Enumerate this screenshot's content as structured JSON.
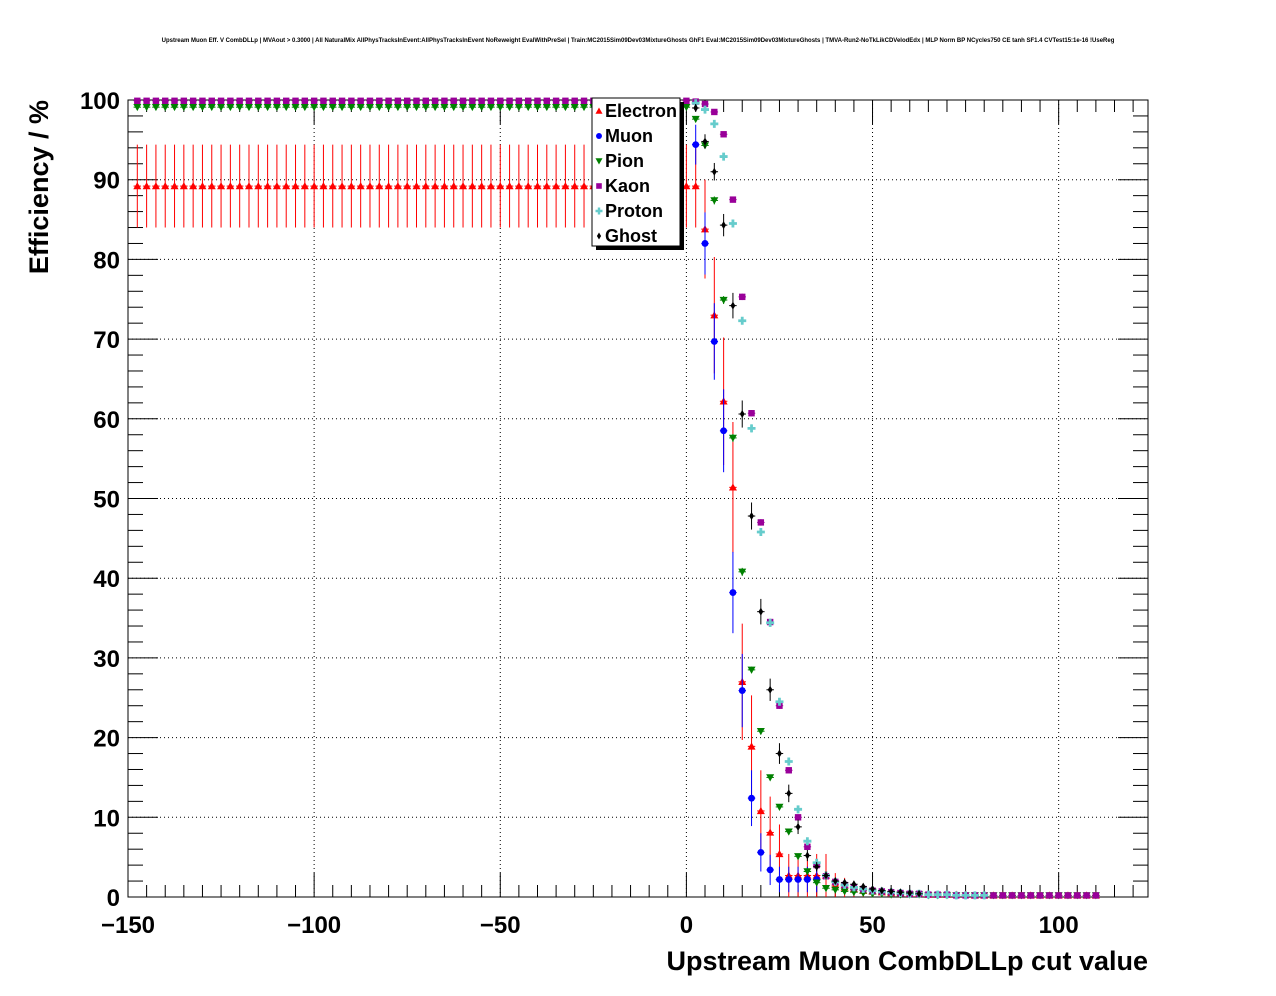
{
  "chart_data": {
    "type": "scatter",
    "title": "Upstream Muon Eff. V CombDLLp | MVAout > 0.3000 | All NaturalMix AllPhysTracksInEvent:AllPhysTracksInEvent NoReweight EvalWithPreSel | Train:MC2015Sim09Dev03MixtureGhosts GhF1 Eval:MC2015Sim09Dev03MixtureGhosts | TMVA-Run2-NoTkLikCDVelodEdx | MLP Norm BP NCycles750 CE tanh SF1.4 CVTest15:1e-16 !UseReg",
    "xlabel": "Upstream Muon CombDLLp cut value",
    "ylabel": "Efficiency / %",
    "xlim": [
      -150,
      124
    ],
    "ylim": [
      0,
      100
    ],
    "xticks": [
      -150,
      -100,
      -50,
      0,
      50,
      100
    ],
    "xtick_labels": [
      "−150",
      "−100",
      "−50",
      "0",
      "50",
      "100"
    ],
    "yticks": [
      0,
      10,
      20,
      30,
      40,
      50,
      60,
      70,
      80,
      90,
      100
    ],
    "ytick_labels": [
      "0",
      "10",
      "20",
      "30",
      "40",
      "50",
      "60",
      "70",
      "80",
      "90",
      "100"
    ],
    "grid": true,
    "legend_position": "top-center",
    "series": [
      {
        "name": "Electron",
        "color": "#ff0000",
        "marker": "triangle-up",
        "x": [
          -147.5,
          -145,
          -142.5,
          -140,
          -137.5,
          -135,
          -132.5,
          -130,
          -127.5,
          -125,
          -122.5,
          -120,
          -117.5,
          -115,
          -112.5,
          -110,
          -107.5,
          -105,
          -102.5,
          -100,
          -97.5,
          -95,
          -92.5,
          -90,
          -87.5,
          -85,
          -82.5,
          -80,
          -77.5,
          -75,
          -72.5,
          -70,
          -67.5,
          -65,
          -62.5,
          -60,
          -57.5,
          -55,
          -52.5,
          -50,
          -47.5,
          -45,
          -42.5,
          -40,
          -37.5,
          -35,
          -32.5,
          -30,
          -27.5,
          -25,
          -22.5,
          -20,
          -17.5,
          -15,
          -12.5,
          -10,
          -7.5,
          -5,
          -2.5,
          0,
          2.5,
          5,
          7.5,
          10,
          12.5,
          15,
          17.5,
          20,
          22.5,
          25,
          27.5,
          30,
          32.5,
          35,
          37.5,
          40,
          42.5,
          45,
          47.5,
          50,
          52.5,
          55,
          57.5,
          60,
          62.5,
          65,
          67.5,
          70,
          72.5,
          75,
          77.5,
          80,
          82.5,
          85,
          87.5,
          90,
          92.5,
          95,
          97.5,
          100,
          102.5,
          105,
          107.5,
          110
        ],
        "y": [
          89.2,
          89.2,
          89.2,
          89.2,
          89.2,
          89.2,
          89.2,
          89.2,
          89.2,
          89.2,
          89.2,
          89.2,
          89.2,
          89.2,
          89.2,
          89.2,
          89.2,
          89.2,
          89.2,
          89.2,
          89.2,
          89.2,
          89.2,
          89.2,
          89.2,
          89.2,
          89.2,
          89.2,
          89.2,
          89.2,
          89.2,
          89.2,
          89.2,
          89.2,
          89.2,
          89.2,
          89.2,
          89.2,
          89.2,
          89.2,
          89.2,
          89.2,
          89.2,
          89.2,
          89.2,
          89.2,
          89.2,
          89.2,
          89.2,
          89.2,
          89.2,
          89.2,
          89.2,
          89.2,
          89.2,
          89.2,
          89.2,
          89.2,
          89.2,
          89.2,
          89.2,
          83.8,
          73.0,
          62.2,
          51.4,
          27.0,
          18.9,
          10.8,
          8.1,
          5.4,
          2.7,
          2.7,
          2.7,
          2.7,
          2.7,
          1.5,
          1.2,
          1.0,
          0.8,
          0.7,
          0.6,
          0.5,
          0.5,
          0.4,
          0.4,
          0.3,
          0.3,
          0.3,
          0.3,
          0.3,
          0.2,
          0.2,
          0.2,
          0.2,
          0.2,
          0.2,
          0.2,
          0.2,
          0.2,
          0.2,
          0.2,
          0.2,
          0.2,
          0.2
        ],
        "err": [
          5.2,
          5.2,
          5.2,
          5.2,
          5.2,
          5.2,
          5.2,
          5.2,
          5.2,
          5.2,
          5.2,
          5.2,
          5.2,
          5.2,
          5.2,
          5.2,
          5.2,
          5.2,
          5.2,
          5.2,
          5.2,
          5.2,
          5.2,
          5.2,
          5.2,
          5.2,
          5.2,
          5.2,
          5.2,
          5.2,
          5.2,
          5.2,
          5.2,
          5.2,
          5.2,
          5.2,
          5.2,
          5.2,
          5.2,
          5.2,
          5.2,
          5.2,
          5.2,
          5.2,
          5.2,
          5.2,
          5.2,
          5.2,
          5.2,
          5.2,
          5.2,
          5.2,
          5.2,
          5.2,
          5.2,
          5.2,
          5.2,
          5.2,
          5.2,
          5.2,
          5.2,
          6.2,
          7.3,
          8.0,
          8.2,
          7.3,
          6.4,
          5.1,
          4.5,
          3.7,
          2.7,
          2.7,
          2.7,
          2.7,
          2.7,
          1.5,
          1.2,
          1.0,
          0.8,
          0.7,
          0.6,
          0.5,
          0.5,
          0.4,
          0.4,
          0.3,
          0.3,
          0.3,
          0.3,
          0.3,
          0.2,
          0.2,
          0.2,
          0.2,
          0.2,
          0.2,
          0.2,
          0.2,
          0.2,
          0.2,
          0.2,
          0.2,
          0.2,
          0.2
        ]
      },
      {
        "name": "Muon",
        "color": "#0000ff",
        "marker": "circle",
        "x": [
          2.5,
          5,
          7.5,
          10,
          12.5,
          15,
          17.5,
          20,
          22.5,
          25,
          27.5,
          30,
          32.5,
          35
        ],
        "y": [
          94.4,
          82.0,
          69.7,
          58.5,
          38.2,
          25.9,
          12.4,
          5.6,
          3.4,
          2.2,
          2.2,
          2.2,
          2.2,
          2.2
        ],
        "err": [
          2.5,
          3.9,
          4.8,
          5.2,
          5.1,
          4.6,
          3.5,
          2.4,
          1.9,
          1.6,
          1.6,
          1.6,
          1.6,
          1.6
        ]
      },
      {
        "name": "Pion",
        "color": "#008000",
        "marker": "triangle-down",
        "x": [
          -147.5,
          -145,
          -142.5,
          -140,
          -137.5,
          -135,
          -132.5,
          -130,
          -127.5,
          -125,
          -122.5,
          -120,
          -117.5,
          -115,
          -112.5,
          -110,
          -107.5,
          -105,
          -102.5,
          -100,
          -97.5,
          -95,
          -92.5,
          -90,
          -87.5,
          -85,
          -82.5,
          -80,
          -77.5,
          -75,
          -72.5,
          -70,
          -67.5,
          -65,
          -62.5,
          -60,
          -57.5,
          -55,
          -52.5,
          -50,
          -47.5,
          -45,
          -42.5,
          -40,
          -37.5,
          -35,
          -32.5,
          -30,
          -27.5,
          -25,
          -22.5,
          -20,
          -17.5,
          -15,
          -12.5,
          -10,
          -7.5,
          -5,
          -2.5,
          0,
          2.5,
          5,
          7.5,
          10,
          12.5,
          15,
          17.5,
          20,
          22.5,
          25,
          27.5,
          30,
          32.5,
          35,
          37.5,
          40,
          42.5,
          45,
          47.5,
          50,
          52.5,
          55,
          57.5,
          60,
          62.5,
          65,
          67.5,
          70,
          72.5,
          75,
          77.5,
          80,
          82.5,
          85,
          87.5,
          90,
          92.5,
          95,
          97.5,
          100,
          102.5,
          105,
          107.5,
          110
        ],
        "y": [
          99.1,
          99.1,
          99.1,
          99.1,
          99.1,
          99.1,
          99.1,
          99.1,
          99.1,
          99.1,
          99.1,
          99.1,
          99.1,
          99.1,
          99.1,
          99.1,
          99.1,
          99.1,
          99.1,
          99.1,
          99.1,
          99.1,
          99.1,
          99.1,
          99.1,
          99.1,
          99.1,
          99.1,
          99.1,
          99.1,
          99.1,
          99.1,
          99.1,
          99.1,
          99.1,
          99.1,
          99.1,
          99.1,
          99.1,
          99.1,
          99.1,
          99.1,
          99.1,
          99.1,
          99.1,
          99.1,
          99.1,
          99.1,
          99.1,
          99.1,
          99.1,
          99.1,
          99.1,
          99.1,
          99.1,
          99.1,
          99.1,
          99.1,
          99.1,
          99.1,
          97.6,
          94.3,
          87.4,
          74.9,
          57.6,
          40.8,
          28.5,
          20.8,
          15.0,
          11.3,
          8.2,
          5.1,
          3.2,
          1.8,
          1.1,
          0.9,
          0.7,
          0.6,
          0.5,
          0.4,
          0.4,
          0.3,
          0.3,
          0.3,
          0.3,
          0.2,
          0.2,
          0.2,
          0.2,
          0.2,
          0.2,
          0.2,
          0.2,
          0.2,
          0.2,
          0.2,
          0.2,
          0.2,
          0.2,
          0.2,
          0.2,
          0.2,
          0.2,
          0.2
        ],
        "err": [
          0.2,
          0.2,
          0.2,
          0.2,
          0.2,
          0.2,
          0.2,
          0.2,
          0.2,
          0.2,
          0.2,
          0.2,
          0.2,
          0.2,
          0.2,
          0.2,
          0.2,
          0.2,
          0.2,
          0.2,
          0.2,
          0.2,
          0.2,
          0.2,
          0.2,
          0.2,
          0.2,
          0.2,
          0.2,
          0.2,
          0.2,
          0.2,
          0.2,
          0.2,
          0.2,
          0.2,
          0.2,
          0.2,
          0.2,
          0.2,
          0.2,
          0.2,
          0.2,
          0.2,
          0.2,
          0.2,
          0.2,
          0.2,
          0.2,
          0.2,
          0.2,
          0.2,
          0.2,
          0.2,
          0.2,
          0.2,
          0.2,
          0.2,
          0.2,
          0.2,
          0.3,
          0.4,
          0.5,
          0.5,
          0.5,
          0.5,
          0.4,
          0.4,
          0.3,
          0.3,
          0.3,
          0.2,
          0.2,
          0.1,
          0.1,
          0.1,
          0.1,
          0.1,
          0.1,
          0.1,
          0.1,
          0.1,
          0.1,
          0.1,
          0.1,
          0.1,
          0.1,
          0.1,
          0.1,
          0.1,
          0.1,
          0.1,
          0.1,
          0.1,
          0.1,
          0.1,
          0.1,
          0.1,
          0.1,
          0.1,
          0.1,
          0.1,
          0.1,
          0.1
        ]
      },
      {
        "name": "Kaon",
        "color": "#990099",
        "marker": "square",
        "x": [
          -147.5,
          -145,
          -142.5,
          -140,
          -137.5,
          -135,
          -132.5,
          -130,
          -127.5,
          -125,
          -122.5,
          -120,
          -117.5,
          -115,
          -112.5,
          -110,
          -107.5,
          -105,
          -102.5,
          -100,
          -97.5,
          -95,
          -92.5,
          -90,
          -87.5,
          -85,
          -82.5,
          -80,
          -77.5,
          -75,
          -72.5,
          -70,
          -67.5,
          -65,
          -62.5,
          -60,
          -57.5,
          -55,
          -52.5,
          -50,
          -47.5,
          -45,
          -42.5,
          -40,
          -37.5,
          -35,
          -32.5,
          -30,
          -27.5,
          -25,
          -22.5,
          -20,
          -17.5,
          -15,
          -12.5,
          -10,
          -7.5,
          -5,
          -2.5,
          0,
          2.5,
          5,
          7.5,
          10,
          12.5,
          15,
          17.5,
          20,
          22.5,
          25,
          27.5,
          30,
          32.5,
          35,
          37.5,
          40,
          42.5,
          45,
          47.5,
          50,
          52.5,
          55,
          57.5,
          60,
          62.5,
          65,
          67.5,
          70,
          72.5,
          75,
          77.5,
          80,
          82.5,
          85,
          87.5,
          90,
          92.5,
          95,
          97.5,
          100,
          102.5,
          105,
          107.5,
          110
        ],
        "y": [
          99.9,
          99.9,
          99.9,
          99.9,
          99.9,
          99.9,
          99.9,
          99.9,
          99.9,
          99.9,
          99.9,
          99.9,
          99.9,
          99.9,
          99.9,
          99.9,
          99.9,
          99.9,
          99.9,
          99.9,
          99.9,
          99.9,
          99.9,
          99.9,
          99.9,
          99.9,
          99.9,
          99.9,
          99.9,
          99.9,
          99.9,
          99.9,
          99.9,
          99.9,
          99.9,
          99.9,
          99.9,
          99.9,
          99.9,
          99.9,
          99.9,
          99.9,
          99.9,
          99.9,
          99.9,
          99.9,
          99.9,
          99.9,
          99.9,
          99.9,
          99.9,
          99.9,
          99.9,
          99.9,
          99.9,
          99.9,
          99.9,
          99.9,
          99.9,
          99.9,
          99.8,
          99.5,
          98.5,
          95.7,
          87.5,
          75.3,
          60.7,
          47.0,
          34.5,
          24.0,
          15.9,
          10.0,
          6.3,
          4.0,
          2.6,
          1.9,
          1.5,
          1.2,
          1.0,
          0.8,
          0.7,
          0.6,
          0.5,
          0.4,
          0.4,
          0.3,
          0.3,
          0.3,
          0.2,
          0.2,
          0.2,
          0.2,
          0.2,
          0.2,
          0.2,
          0.2,
          0.2,
          0.2,
          0.2,
          0.2,
          0.2,
          0.2,
          0.2,
          0.2
        ],
        "err": [
          0.1,
          0.1,
          0.1,
          0.1,
          0.1,
          0.1,
          0.1,
          0.1,
          0.1,
          0.1,
          0.1,
          0.1,
          0.1,
          0.1,
          0.1,
          0.1,
          0.1,
          0.1,
          0.1,
          0.1,
          0.1,
          0.1,
          0.1,
          0.1,
          0.1,
          0.1,
          0.1,
          0.1,
          0.1,
          0.1,
          0.1,
          0.1,
          0.1,
          0.1,
          0.1,
          0.1,
          0.1,
          0.1,
          0.1,
          0.1,
          0.1,
          0.1,
          0.1,
          0.1,
          0.1,
          0.1,
          0.1,
          0.1,
          0.1,
          0.1,
          0.1,
          0.1,
          0.1,
          0.1,
          0.1,
          0.1,
          0.1,
          0.1,
          0.1,
          0.1,
          0.1,
          0.1,
          0.1,
          0.2,
          0.3,
          0.4,
          0.4,
          0.4,
          0.4,
          0.4,
          0.3,
          0.3,
          0.2,
          0.2,
          0.1,
          0.1,
          0.1,
          0.1,
          0.1,
          0.1,
          0.1,
          0.1,
          0.1,
          0.1,
          0.1,
          0.1,
          0.1,
          0.1,
          0.1,
          0.1,
          0.1,
          0.1,
          0.1,
          0.1,
          0.1,
          0.1,
          0.1,
          0.1,
          0.1,
          0.1,
          0.1,
          0.1,
          0.1,
          0.1
        ]
      },
      {
        "name": "Proton",
        "color": "#66cccc",
        "marker": "cross",
        "x": [
          2.5,
          5,
          7.5,
          10,
          12.5,
          15,
          17.5,
          20,
          22.5,
          25,
          27.5,
          30,
          32.5,
          35,
          37.5,
          40,
          42.5,
          45,
          47.5,
          50,
          52.5,
          55,
          57.5,
          60,
          62.5,
          65,
          67.5,
          70,
          72.5,
          75,
          77.5,
          80
        ],
        "y": [
          99.6,
          98.8,
          97.0,
          92.9,
          84.5,
          72.3,
          58.8,
          45.8,
          34.4,
          24.5,
          17.0,
          11.0,
          7.0,
          4.3,
          2.7,
          1.9,
          1.5,
          1.2,
          1.0,
          0.8,
          0.7,
          0.6,
          0.5,
          0.4,
          0.4,
          0.3,
          0.3,
          0.3,
          0.2,
          0.2,
          0.2,
          0.2
        ],
        "err": [
          0.1,
          0.2,
          0.2,
          0.3,
          0.4,
          0.4,
          0.5,
          0.5,
          0.5,
          0.4,
          0.4,
          0.3,
          0.3,
          0.2,
          0.2,
          0.1,
          0.1,
          0.1,
          0.1,
          0.1,
          0.1,
          0.1,
          0.1,
          0.1,
          0.1,
          0.1,
          0.1,
          0.1,
          0.1,
          0.1,
          0.1,
          0.1
        ]
      },
      {
        "name": "Ghost",
        "color": "#000000",
        "marker": "diamond",
        "x": [
          2.5,
          5,
          7.5,
          10,
          12.5,
          15,
          17.5,
          20,
          22.5,
          25,
          27.5,
          30,
          32.5,
          35,
          37.5,
          40,
          42.5,
          45,
          47.5,
          50,
          52.5,
          55,
          57.5,
          60,
          62.5
        ],
        "y": [
          99.0,
          94.8,
          91.0,
          84.3,
          74.2,
          60.6,
          47.8,
          35.8,
          26.0,
          18.0,
          13.0,
          8.8,
          5.2,
          3.8,
          2.7,
          2.0,
          1.8,
          1.6,
          1.3,
          1.0,
          0.8,
          0.7,
          0.6,
          0.5,
          0.4
        ],
        "err": [
          0.5,
          0.9,
          1.1,
          1.4,
          1.6,
          1.7,
          1.7,
          1.6,
          1.4,
          1.3,
          1.1,
          0.9,
          0.7,
          0.6,
          0.5,
          0.4,
          0.4,
          0.3,
          0.3,
          0.2,
          0.2,
          0.2,
          0.2,
          0.2,
          0.1
        ]
      }
    ]
  }
}
